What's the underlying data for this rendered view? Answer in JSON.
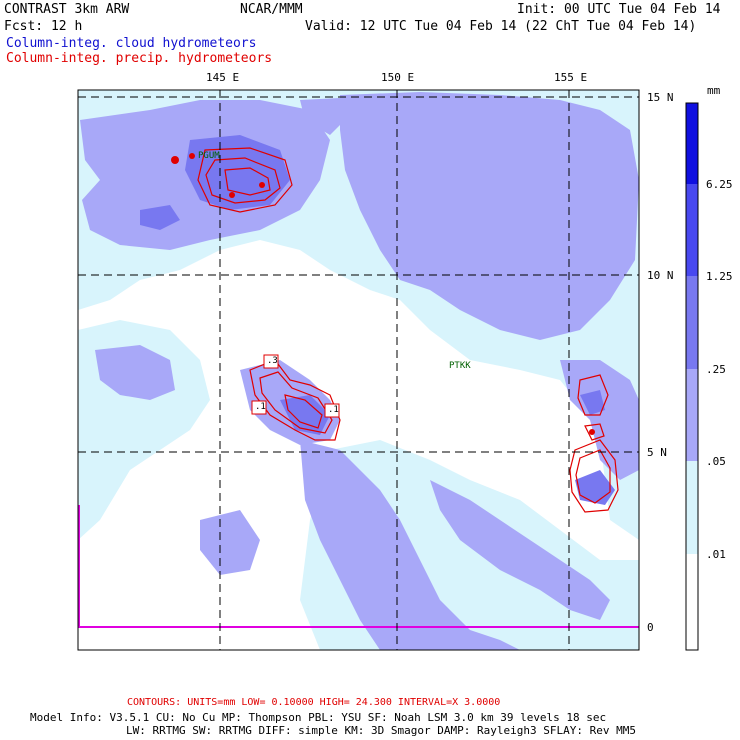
{
  "header": {
    "model": "CONTRAST  3km ARW",
    "center": "NCAR/MMM",
    "init": "Init: 00 UTC Tue 04 Feb 14",
    "fcst": "Fcst:   12 h",
    "valid": "Valid: 12 UTC Tue 04 Feb 14 (22 ChT Tue 04 Feb 14)",
    "field1": "Column-integ. cloud hydrometeors",
    "field2": "Column-integ. precip. hydrometeors"
  },
  "map": {
    "lon_labels": [
      "145 E",
      "150 E",
      "155 E"
    ],
    "lat_labels": [
      "15 N",
      "10 N",
      "5 N",
      "0"
    ],
    "stations": [
      "PGUM",
      "PTKK"
    ],
    "contour_labels": [
      ".3",
      ".1",
      ".1"
    ]
  },
  "colorbar": {
    "unit": "mm",
    "labels": [
      "6.25",
      "1.25",
      ".25",
      ".05",
      ".01"
    ],
    "colors": [
      "#1010e0",
      "#4848f0",
      "#7878f0",
      "#a8a8f8",
      "#d8f4fc",
      "#ffffff"
    ]
  },
  "footer": {
    "contours": "CONTOURS:  UNITS=mm  LOW= 0.10000      HIGH= 24.300      INTERVAL=X  3.0000",
    "line1": "Model Info: V3.5.1    CU: No Cu     MP: Thompson     PBL: YSU       SF: Noah LSM     3.0 km   39 levels    18 sec",
    "line2": "LW: RRTMG    SW: RRTMG   DIFF: simple KM: 3D Smagor DAMP: Rayleigh3  SFLAY: Rev MM5"
  },
  "colors": {
    "cloud_light": "#d8f4fc",
    "cloud_mid": "#a8a8f8",
    "cloud_dark": "#7878f0",
    "precip": "#e00000",
    "title_blue": "#1010d0",
    "boundary": "#e000e0"
  }
}
